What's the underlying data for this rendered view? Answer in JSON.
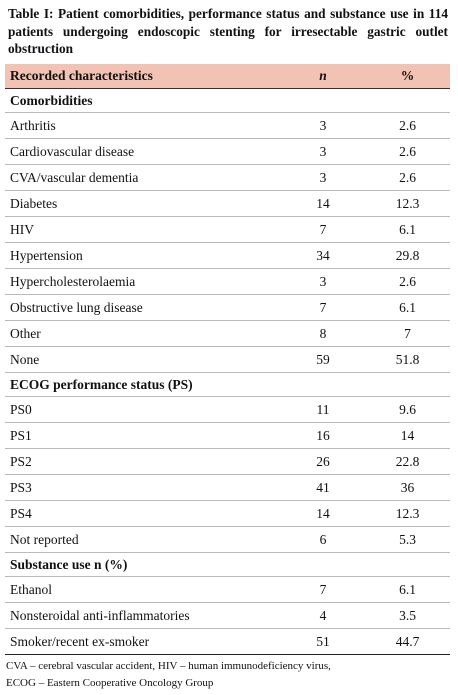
{
  "title": "Table I: Patient comorbidities, performance status and substance use in 114 patients undergoing endoscopic stenting for irresectable gastric outlet obstruction",
  "table": {
    "header": [
      "Recorded characteristics",
      "n",
      "%"
    ],
    "sections": [
      {
        "title": "Comorbidities",
        "rows": [
          [
            "Arthritis",
            3,
            2.6
          ],
          [
            "Cardiovascular disease",
            3,
            2.6
          ],
          [
            "CVA/vascular dementia",
            3,
            2.6
          ],
          [
            "Diabetes",
            14,
            12.3
          ],
          [
            "HIV",
            7,
            6.1
          ],
          [
            "Hypertension",
            34,
            29.8
          ],
          [
            "Hypercholesterolaemia",
            3,
            2.6
          ],
          [
            "Obstructive lung disease",
            7,
            6.1
          ],
          [
            "Other",
            8,
            7
          ],
          [
            "None",
            59,
            51.8
          ]
        ]
      },
      {
        "title": "ECOG performance status (PS)",
        "rows": [
          [
            "PS0",
            11,
            9.6
          ],
          [
            "PS1",
            16,
            14
          ],
          [
            "PS2",
            26,
            22.8
          ],
          [
            "PS3",
            41,
            36
          ],
          [
            "PS4",
            14,
            12.3
          ],
          [
            "Not reported",
            6,
            5.3
          ]
        ]
      },
      {
        "title": "Substance use n (%)",
        "rows": [
          [
            "Ethanol",
            7,
            6.1
          ],
          [
            "Nonsteroidal anti-inflammatories",
            4,
            3.5
          ],
          [
            "Smoker/recent ex-smoker",
            51,
            44.7
          ]
        ]
      }
    ]
  },
  "footnote": [
    "CVA – cerebral vascular accident, HIV – human immunodeficiency virus,",
    "ECOG – Eastern Cooperative Oncology Group"
  ]
}
